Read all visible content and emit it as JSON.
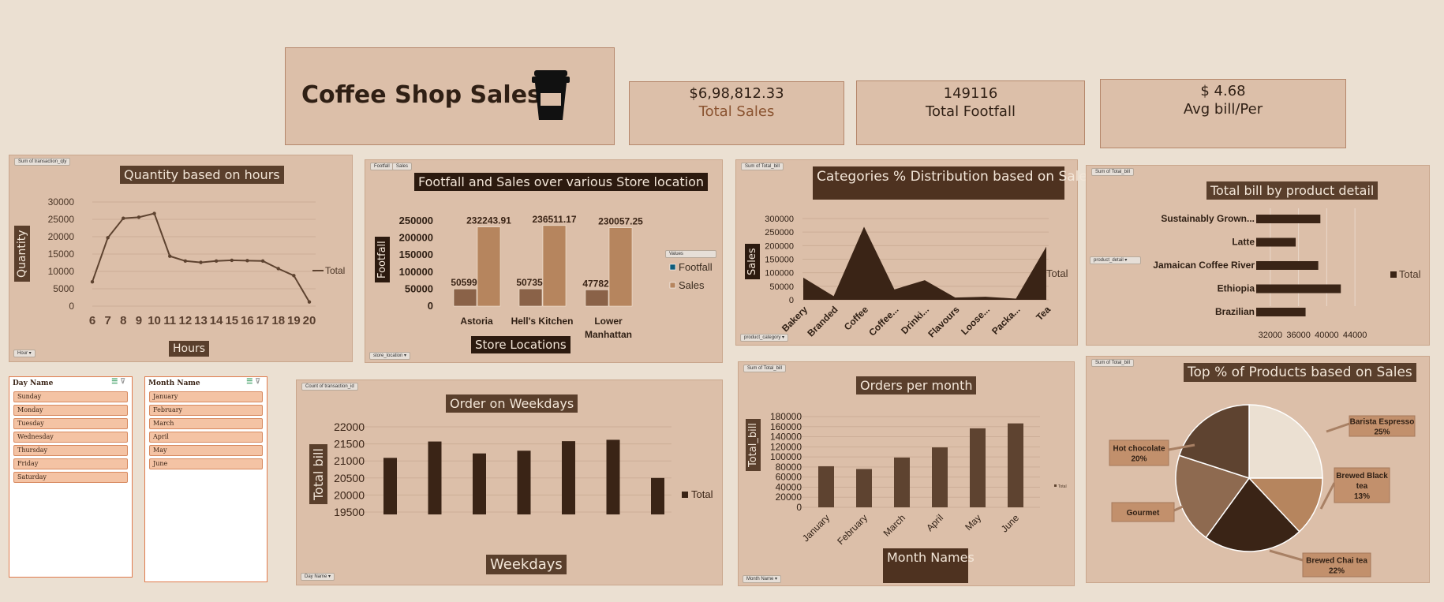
{
  "header": {
    "title": "Coffee Shop Sales"
  },
  "kpis": {
    "sales": {
      "value": "$6,98,812.33",
      "label": "Total Sales"
    },
    "footfall": {
      "value": "149116",
      "label": "Total Footfall"
    },
    "avg": {
      "value": "$ 4.68",
      "label": "Avg bill/Per"
    }
  },
  "colors": {
    "bg": "#ebe0d2",
    "panel": "#dcbfa9",
    "dark": "#3a2416",
    "mid": "#5e4330",
    "light": "#b6855e"
  },
  "hours_chart": {
    "field_tag": "Sum of transaction_qty",
    "axis_tag": "Hour",
    "chart_data": {
      "type": "line",
      "title": "Quantity based on hours",
      "xlabel": "Hours",
      "ylabel": "Quantity",
      "categories": [
        "6",
        "7",
        "8",
        "9",
        "10",
        "11",
        "12",
        "13",
        "14",
        "15",
        "16",
        "17",
        "18",
        "19",
        "20"
      ],
      "series": [
        {
          "name": "Total",
          "values": [
            7000,
            19700,
            25300,
            25600,
            26700,
            14400,
            13000,
            12600,
            13000,
            13200,
            13100,
            13000,
            10800,
            8800,
            1200
          ]
        }
      ],
      "yticks": [
        "0",
        "5000",
        "10000",
        "15000",
        "20000",
        "25000",
        "30000"
      ],
      "ylim": [
        0,
        30000
      ]
    }
  },
  "store_chart": {
    "tags": [
      "Footfall",
      "Sales"
    ],
    "legend_tag": "Values",
    "axis_tag": "store_location",
    "chart_data": {
      "type": "bar",
      "title": "Footfall and Sales over various Store location",
      "xlabel": "Store Locations",
      "ylabel": "Footfall",
      "categories": [
        "Astoria",
        "Hell's Kitchen",
        "Lower Manhattan"
      ],
      "category_lines": [
        [
          "Astoria"
        ],
        [
          "Hell's Kitchen"
        ],
        [
          "Lower",
          "Manhattan"
        ]
      ],
      "series": [
        {
          "name": "Footfall",
          "values": [
            50599,
            50735,
            47782
          ],
          "labels": [
            "50599",
            "50735",
            "47782"
          ]
        },
        {
          "name": "Sales",
          "values": [
            232243.91,
            236511.17,
            230057.25
          ],
          "labels": [
            "232243.91",
            "236511.17",
            "230057.25"
          ]
        }
      ],
      "yticks": [
        "0",
        "50000",
        "100000",
        "150000",
        "200000",
        "250000"
      ],
      "ylim": [
        0,
        250000
      ]
    }
  },
  "category_chart": {
    "field_tag": "Sum of Total_bill",
    "axis_tag": "product_category",
    "chart_data": {
      "type": "area",
      "title": "Categories % Distribution based on Sales",
      "ylabel": "Sales",
      "categories": [
        "Bakery",
        "Branded",
        "Coffee",
        "Coffee...",
        "Drinki...",
        "Flavours",
        "Loose...",
        "Packa...",
        "Tea"
      ],
      "series": [
        {
          "name": "Total",
          "values": [
            82000,
            13600,
            269900,
            38400,
            72400,
            8400,
            11200,
            4400,
            196400
          ]
        }
      ],
      "yticks": [
        "0",
        "50000",
        "100000",
        "150000",
        "200000",
        "250000",
        "300000"
      ],
      "ylim": [
        0,
        300000
      ]
    }
  },
  "product_chart": {
    "field_tag": "Sum of Total_bill",
    "axis_tag": "product_detail",
    "chart_data": {
      "type": "bar",
      "title": "Total bill by product detail",
      "categories": [
        "Sustainably Grown...",
        "Latte",
        "Jamaican Coffee River",
        "Ethiopia",
        "Brazilian"
      ],
      "series": [
        {
          "name": "Total",
          "values": [
            39100,
            35600,
            38800,
            42000,
            37000
          ]
        }
      ],
      "xticks": [
        "32000",
        "36000",
        "40000",
        "44000"
      ],
      "xlim": [
        30000,
        46000
      ]
    }
  },
  "slicer_day": {
    "title": "Day Name",
    "items": [
      "Sunday",
      "Monday",
      "Tuesday",
      "Wednesday",
      "Thursday",
      "Friday",
      "Saturday"
    ]
  },
  "slicer_month": {
    "title": "Month Name",
    "items": [
      "January",
      "February",
      "March",
      "April",
      "May",
      "June"
    ]
  },
  "weekday_chart": {
    "field_tag": "Count of transaction_id",
    "axis_tag": "Day Name",
    "chart_data": {
      "type": "bar",
      "title": "Order on Weekdays",
      "xlabel": "Weekdays",
      "ylabel": "Total bill",
      "categories": [
        "Sunday",
        "Monday",
        "Tuesday",
        "Wednesday",
        "Thursday",
        "Friday",
        "Saturday"
      ],
      "series": [
        {
          "name": "Total",
          "values": [
            21090,
            21570,
            21220,
            21300,
            21580,
            21620,
            20500
          ]
        }
      ],
      "yticks": [
        "19500",
        "20000",
        "20500",
        "21000",
        "21500",
        "22000"
      ],
      "ylim": [
        19500,
        22000
      ]
    }
  },
  "month_chart": {
    "field_tag": "Sum of Total_bill",
    "axis_tag": "Month Name",
    "chart_data": {
      "type": "bar",
      "title": "Orders per month",
      "xlabel": "Month Names",
      "ylabel": "Total_bill",
      "categories": [
        "January",
        "February",
        "March",
        "April",
        "May",
        "June"
      ],
      "series": [
        {
          "name": "Total",
          "values": [
            81500,
            76000,
            98800,
            118900,
            156700,
            166500
          ]
        }
      ],
      "yticks": [
        "0",
        "20000",
        "40000",
        "60000",
        "80000",
        "100000",
        "120000",
        "140000",
        "160000",
        "180000"
      ],
      "ylim": [
        0,
        180000
      ]
    }
  },
  "pie_chart": {
    "field_tag": "Sum of Total_bill",
    "chart_data": {
      "type": "pie",
      "title": "Top % of Products based on Sales",
      "slices": [
        {
          "name": "Barista Espresso",
          "value": 25,
          "label": "25%"
        },
        {
          "name": "Brewed Black tea",
          "value": 13,
          "label": "13%"
        },
        {
          "name": "Brewed Chai tea",
          "value": 22,
          "label": "22%"
        },
        {
          "name": "Gourmet",
          "value": 20,
          "label": ""
        },
        {
          "name": "Hot chocolate",
          "value": 20,
          "label": "20%"
        }
      ]
    }
  }
}
